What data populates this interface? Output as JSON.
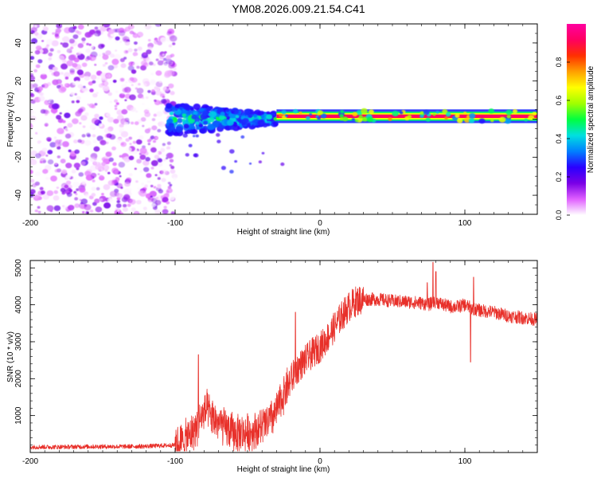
{
  "title": "YM08.2026.009.21.54.C41",
  "chart_data": [
    {
      "type": "heatmap",
      "name": "spectrogram",
      "xlabel": "Height of straight line (km)",
      "ylabel": "Frequency (Hz)",
      "xlim": [
        -200,
        150
      ],
      "ylim": [
        -50,
        50
      ],
      "xticks": [
        -200,
        -100,
        0,
        100
      ],
      "yticks": [
        -40,
        -20,
        0,
        20,
        40
      ],
      "colorbar": {
        "label": "Normalized spectral amplitude",
        "range": [
          0,
          1
        ],
        "ticks": [
          0.0,
          0.2,
          0.4,
          0.6,
          0.8
        ],
        "colors": [
          "#ffffff",
          "#e060ff",
          "#7a00e6",
          "#2a00ff",
          "#0080ff",
          "#00e0e0",
          "#00ff40",
          "#a0ff00",
          "#ffff00",
          "#ffa000",
          "#ff3000",
          "#ff0060",
          "#ff00a0"
        ]
      },
      "segments": [
        {
          "region": "noise",
          "x_range": [
            -200,
            -100
          ],
          "freq_range": [
            -50,
            50
          ],
          "amplitude_range": [
            0.0,
            0.2
          ]
        },
        {
          "region": "onset",
          "x_range": [
            -105,
            -30
          ],
          "freq_center": 0,
          "freq_halfwidth": 8,
          "amplitude_range": [
            0.2,
            0.5
          ]
        },
        {
          "region": "signal",
          "x_range": [
            -30,
            150
          ],
          "freq_center": 1.5,
          "freq_halfwidth": 2,
          "amplitude_range": [
            0.8,
            1.0
          ]
        }
      ]
    },
    {
      "type": "line",
      "name": "snr",
      "xlabel": "Height of straight line (km)",
      "ylabel": "SNR (10 * v/v)",
      "xlim": [
        -200,
        150
      ],
      "ylim": [
        0,
        5200
      ],
      "xticks": [
        -200,
        -100,
        0,
        100
      ],
      "yticks": [
        1000,
        2000,
        3000,
        4000,
        5000
      ],
      "color": "#e8302a",
      "series": [
        {
          "name": "SNR",
          "x": [
            -200,
            -180,
            -160,
            -140,
            -120,
            -100,
            -95,
            -90,
            -85,
            -82,
            -78,
            -75,
            -70,
            -65,
            -60,
            -55,
            -50,
            -45,
            -40,
            -35,
            -30,
            -25,
            -20,
            -15,
            -10,
            -5,
            0,
            5,
            10,
            15,
            20,
            25,
            30,
            40,
            50,
            60,
            70,
            75,
            80,
            85,
            90,
            95,
            100,
            105,
            110,
            120,
            130,
            140,
            150
          ],
          "y": [
            150,
            150,
            160,
            160,
            170,
            200,
            280,
            450,
            700,
            950,
            1150,
            950,
            800,
            650,
            550,
            520,
            540,
            600,
            700,
            850,
            1100,
            1600,
            2000,
            2300,
            2500,
            2700,
            2850,
            3100,
            3400,
            3700,
            3950,
            4100,
            4150,
            4150,
            4100,
            4080,
            4050,
            4000,
            4100,
            4000,
            3950,
            3950,
            4000,
            3900,
            3850,
            3800,
            3700,
            3650,
            3600
          ]
        }
      ],
      "peaks": [
        {
          "x": -84,
          "y": 2650
        },
        {
          "x": -17,
          "y": 3800
        },
        {
          "x": 78,
          "y": 5150
        },
        {
          "x": 80,
          "y": 4900
        },
        {
          "x": 74,
          "y": 4600
        },
        {
          "x": 106,
          "y": 4750
        },
        {
          "x": 104,
          "y": 2450
        }
      ]
    }
  ]
}
